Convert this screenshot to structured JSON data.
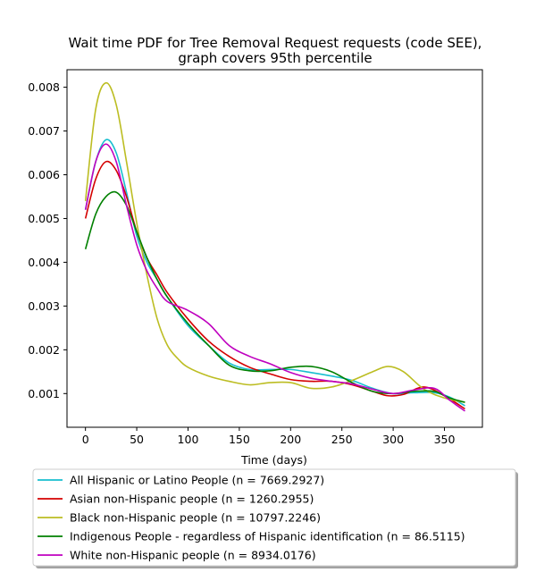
{
  "chart_data": {
    "type": "line",
    "title_lines": [
      "Wait time PDF for Tree Removal Request  requests (code SEE),",
      "graph covers 95th percentile"
    ],
    "xlabel": "Time (days)",
    "ylabel": "",
    "xlim": [
      -18,
      387
    ],
    "ylim": [
      0.00023,
      0.0084
    ],
    "xticks": [
      0,
      50,
      100,
      150,
      200,
      250,
      300,
      350
    ],
    "yticks": [
      0.001,
      0.002,
      0.003,
      0.004,
      0.005,
      0.006,
      0.007,
      0.008
    ],
    "ytick_labels": [
      "0.001",
      "0.002",
      "0.003",
      "0.004",
      "0.005",
      "0.006",
      "0.007",
      "0.008"
    ],
    "grid": false,
    "legend_position": "below plot",
    "series": [
      {
        "name": "All Hispanic or Latino People (n = 7669.2927)",
        "color": "#17becf",
        "points": [
          [
            0,
            0.0052
          ],
          [
            10,
            0.0063
          ],
          [
            20,
            0.0068
          ],
          [
            30,
            0.0065
          ],
          [
            40,
            0.0056
          ],
          [
            50,
            0.0046
          ],
          [
            60,
            0.004
          ],
          [
            70,
            0.0036
          ],
          [
            80,
            0.0032
          ],
          [
            100,
            0.00255
          ],
          [
            120,
            0.0021
          ],
          [
            140,
            0.0017
          ],
          [
            160,
            0.00155
          ],
          [
            180,
            0.00155
          ],
          [
            200,
            0.00155
          ],
          [
            220,
            0.00148
          ],
          [
            240,
            0.0014
          ],
          [
            260,
            0.0013
          ],
          [
            280,
            0.00112
          ],
          [
            300,
            0.001
          ],
          [
            320,
            0.00102
          ],
          [
            340,
            0.00102
          ],
          [
            355,
            0.00092
          ],
          [
            370,
            0.00072
          ]
        ]
      },
      {
        "name": "Asian non-Hispanic people (n = 1260.2955)",
        "color": "#d40000",
        "points": [
          [
            0,
            0.005
          ],
          [
            10,
            0.0059
          ],
          [
            20,
            0.0063
          ],
          [
            30,
            0.0061
          ],
          [
            40,
            0.0055
          ],
          [
            50,
            0.0047
          ],
          [
            60,
            0.0041
          ],
          [
            70,
            0.0037
          ],
          [
            80,
            0.0033
          ],
          [
            100,
            0.0027
          ],
          [
            120,
            0.0022
          ],
          [
            140,
            0.00185
          ],
          [
            160,
            0.0016
          ],
          [
            180,
            0.00145
          ],
          [
            200,
            0.00132
          ],
          [
            220,
            0.00128
          ],
          [
            240,
            0.00128
          ],
          [
            260,
            0.0012
          ],
          [
            280,
            0.00105
          ],
          [
            295,
            0.00095
          ],
          [
            310,
            0.00098
          ],
          [
            330,
            0.00115
          ],
          [
            350,
            0.00095
          ],
          [
            370,
            0.00065
          ]
        ]
      },
      {
        "name": "Black non-Hispanic people (n = 10797.2246)",
        "color": "#bcbd22",
        "points": [
          [
            0,
            0.0054
          ],
          [
            10,
            0.0075
          ],
          [
            20,
            0.0081
          ],
          [
            30,
            0.0076
          ],
          [
            40,
            0.0063
          ],
          [
            50,
            0.0049
          ],
          [
            60,
            0.0037
          ],
          [
            70,
            0.0027
          ],
          [
            80,
            0.0021
          ],
          [
            90,
            0.0018
          ],
          [
            100,
            0.0016
          ],
          [
            120,
            0.0014
          ],
          [
            140,
            0.00128
          ],
          [
            160,
            0.0012
          ],
          [
            180,
            0.00125
          ],
          [
            200,
            0.00125
          ],
          [
            220,
            0.00112
          ],
          [
            240,
            0.00115
          ],
          [
            260,
            0.0013
          ],
          [
            280,
            0.0015
          ],
          [
            295,
            0.00162
          ],
          [
            310,
            0.0015
          ],
          [
            330,
            0.0011
          ],
          [
            350,
            0.0009
          ],
          [
            370,
            0.0008
          ]
        ]
      },
      {
        "name": "Indigenous People - regardless of Hispanic identification (n = 86.5115)",
        "color": "#008000",
        "points": [
          [
            0,
            0.0043
          ],
          [
            10,
            0.0051
          ],
          [
            20,
            0.0055
          ],
          [
            30,
            0.0056
          ],
          [
            40,
            0.0053
          ],
          [
            50,
            0.0047
          ],
          [
            60,
            0.0041
          ],
          [
            70,
            0.0036
          ],
          [
            80,
            0.0032
          ],
          [
            100,
            0.0026
          ],
          [
            120,
            0.0021
          ],
          [
            140,
            0.00165
          ],
          [
            160,
            0.00152
          ],
          [
            180,
            0.00152
          ],
          [
            200,
            0.0016
          ],
          [
            220,
            0.00162
          ],
          [
            240,
            0.0015
          ],
          [
            260,
            0.00125
          ],
          [
            280,
            0.00105
          ],
          [
            300,
            0.001
          ],
          [
            320,
            0.00105
          ],
          [
            340,
            0.00105
          ],
          [
            355,
            0.0009
          ],
          [
            370,
            0.0008
          ]
        ]
      },
      {
        "name": "White non-Hispanic people (n = 8934.0176)",
        "color": "#bf00bf",
        "points": [
          [
            0,
            0.0052
          ],
          [
            10,
            0.0063
          ],
          [
            20,
            0.0067
          ],
          [
            30,
            0.0063
          ],
          [
            40,
            0.0053
          ],
          [
            50,
            0.0044
          ],
          [
            60,
            0.0038
          ],
          [
            70,
            0.0034
          ],
          [
            80,
            0.0031
          ],
          [
            100,
            0.0029
          ],
          [
            120,
            0.0026
          ],
          [
            140,
            0.0021
          ],
          [
            160,
            0.00185
          ],
          [
            180,
            0.00168
          ],
          [
            200,
            0.00148
          ],
          [
            220,
            0.00135
          ],
          [
            240,
            0.00128
          ],
          [
            260,
            0.00122
          ],
          [
            280,
            0.0011
          ],
          [
            300,
            0.001
          ],
          [
            320,
            0.00108
          ],
          [
            340,
            0.00112
          ],
          [
            355,
            0.00085
          ],
          [
            370,
            0.0006
          ]
        ]
      }
    ]
  }
}
